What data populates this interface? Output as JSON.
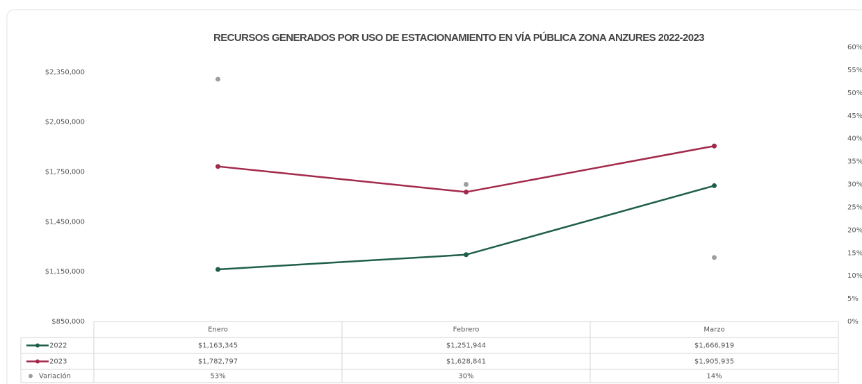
{
  "chart_data": {
    "type": "line",
    "title": "RECURSOS GENERADOS POR USO DE ESTACIONAMIENTO EN VÍA PÚBLICA ZONA ANZURES 2022-2023",
    "categories": [
      "Enero",
      "Febrero",
      "Marzo"
    ],
    "series": [
      {
        "name": "2022",
        "color": "#1f5e4b",
        "values": [
          1163345,
          1251944,
          1666919
        ],
        "value_labels": [
          "$1,163,345",
          "$1,251,944",
          "$1,666,919"
        ]
      },
      {
        "name": "2023",
        "color": "#a3294b",
        "values": [
          1782797,
          1628841,
          1905935
        ],
        "value_labels": [
          "$1,782,797",
          "$1,628,841",
          "$1,905,935"
        ]
      },
      {
        "name": "Variación",
        "color": "#9e9e9e",
        "axis": "y2",
        "markers_only": true,
        "values": [
          53,
          30,
          14
        ],
        "value_labels": [
          "53%",
          "30%",
          "14%"
        ]
      }
    ],
    "ylim": [
      850000,
      2500000
    ],
    "yticks": [
      {
        "value": 850000,
        "label": "$850,000"
      },
      {
        "value": 1150000,
        "label": "$1,150,000"
      },
      {
        "value": 1450000,
        "label": "$1,450,000"
      },
      {
        "value": 1750000,
        "label": "$1,750,000"
      },
      {
        "value": 2050000,
        "label": "$2,050,000"
      },
      {
        "value": 2350000,
        "label": "$2,350,000"
      }
    ],
    "y2lim": [
      0,
      60
    ],
    "y2ticks": [
      {
        "value": 0,
        "label": "0%"
      },
      {
        "value": 5,
        "label": "5%"
      },
      {
        "value": 10,
        "label": "10%"
      },
      {
        "value": 15,
        "label": "15%"
      },
      {
        "value": 20,
        "label": "20%"
      },
      {
        "value": 25,
        "label": "25%"
      },
      {
        "value": 30,
        "label": "30%"
      },
      {
        "value": 35,
        "label": "35%"
      },
      {
        "value": 40,
        "label": "40%"
      },
      {
        "value": 45,
        "label": "45%"
      },
      {
        "value": 50,
        "label": "50%"
      },
      {
        "value": 55,
        "label": "55%"
      },
      {
        "value": 60,
        "label": "60%"
      }
    ],
    "grid": false,
    "data_table": true
  }
}
